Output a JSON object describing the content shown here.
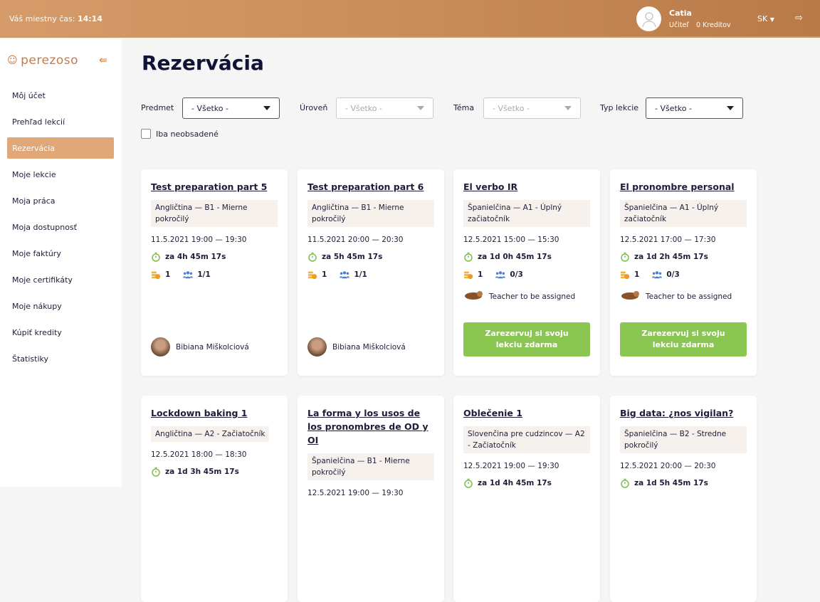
{
  "header": {
    "local_time_label": "Váš miestny čas:",
    "local_time": "14:14",
    "user_name": "Catia",
    "user_role": "Učiteľ",
    "credits": "0 Kreditov",
    "language": "SK"
  },
  "sidebar": {
    "logo": "perezoso",
    "items": [
      {
        "label": "Môj účet"
      },
      {
        "label": "Prehľad lekcií"
      },
      {
        "label": "Rezervácia",
        "active": true
      },
      {
        "label": "Moje lekcie"
      },
      {
        "label": "Moja práca"
      },
      {
        "label": "Moja dostupnosť"
      },
      {
        "label": "Moje faktúry"
      },
      {
        "label": "Moje certifikáty"
      },
      {
        "label": "Moje nákupy"
      },
      {
        "label": "Kúpiť kredity"
      },
      {
        "label": "Štatistiky"
      }
    ]
  },
  "page_title": "Rezervácia",
  "filters": [
    {
      "label": "Predmet",
      "value": "- Všetko -",
      "disabled": false
    },
    {
      "label": "Úroveň",
      "value": "- Všetko -",
      "disabled": true
    },
    {
      "label": "Téma",
      "value": "- Všetko -",
      "disabled": true
    },
    {
      "label": "Typ lekcie",
      "value": "- Všetko -",
      "disabled": false
    }
  ],
  "only_free_label": "Iba neobsadené",
  "colors": {
    "accent": "#e0a878",
    "button": "#8bc652",
    "header": "#c98d5a"
  },
  "cards": [
    {
      "title": "Test preparation part 5",
      "tag": "Angličtina — B1 - Mierne pokročilý",
      "date": "11.5.2021 19:00 — 19:30",
      "countdown": "za 4h 45m 17s",
      "credits": "1",
      "capacity": "1/1",
      "teacher": "Bibiana Miškolciová"
    },
    {
      "title": "Test preparation part 6",
      "tag": "Angličtina — B1 - Mierne pokročilý",
      "date": "11.5.2021 20:00 — 20:30",
      "countdown": "za 5h 45m 17s",
      "credits": "1",
      "capacity": "1/1",
      "teacher": "Bibiana Miškolciová"
    },
    {
      "title": "El verbo IR",
      "tag": "Španielčina — A1 - Úplný začiatočník",
      "date": "12.5.2021 15:00 — 15:30",
      "countdown": "za 1d 0h 45m 17s",
      "credits": "1",
      "capacity": "0/3",
      "teacher": "Teacher to be assigned",
      "button": "Zarezervuj si svoju lekciu zdarma"
    },
    {
      "title": "El pronombre personal",
      "tag": "Španielčina — A1 - Úplný začiatočník",
      "date": "12.5.2021 17:00 — 17:30",
      "countdown": "za 1d 2h 45m 17s",
      "credits": "1",
      "capacity": "0/3",
      "teacher": "Teacher to be assigned",
      "button": "Zarezervuj si svoju lekciu zdarma"
    },
    {
      "title": "Lockdown baking 1",
      "tag": "Angličtina — A2 - Začiatočník",
      "date": "12.5.2021 18:00 — 18:30",
      "countdown": "za 1d 3h 45m 17s"
    },
    {
      "title": "La forma y los usos de los pronombres de OD y OI",
      "tag": "Španielčina — B1 - Mierne pokročilý",
      "date": "12.5.2021 19:00 — 19:30"
    },
    {
      "title": "Oblečenie 1",
      "tag": "Slovenčina pre cudzincov — A2 - Začiatočník",
      "date": "12.5.2021 19:00 — 19:30",
      "countdown": "za 1d 4h 45m 17s"
    },
    {
      "title": "Big data: ¿nos vigilan?",
      "tag": "Španielčina — B2 - Stredne pokročilý",
      "date": "12.5.2021 20:00 — 20:30",
      "countdown": "za 1d 5h 45m 17s"
    }
  ]
}
